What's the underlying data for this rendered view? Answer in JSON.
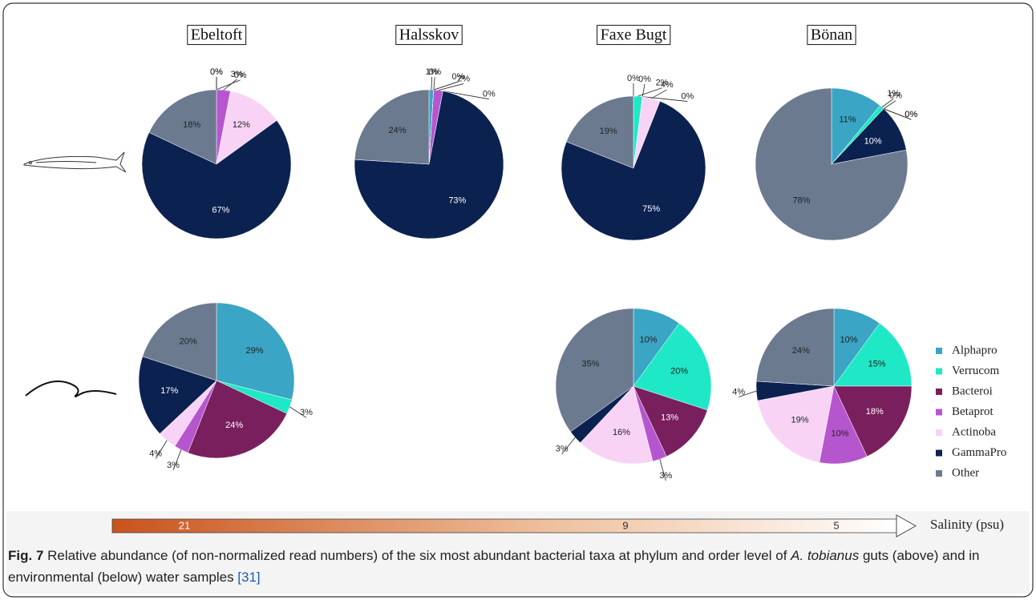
{
  "chart_data": [
    {
      "type": "pie",
      "title": "Ebeltoft",
      "categories": [
        "Alphapro",
        "Verrucom",
        "Bacteroi",
        "Betaprot",
        "Actinoba",
        "GammaPro",
        "Other"
      ],
      "colors": [
        "#3aa5c4",
        "#1fe8c6",
        "#7a1f5d",
        "#b656cf",
        "#f8d3f6",
        "#0b2150",
        "#6c7a90"
      ],
      "values": [
        0,
        0,
        0,
        3,
        12,
        67,
        18
      ],
      "value_labels": [
        "0%",
        "0%",
        "0%",
        "3%",
        "12%",
        "67%",
        "18%"
      ]
    },
    {
      "type": "pie",
      "title": "Halsskov",
      "categories": [
        "Alphapro",
        "Verrucom",
        "Bacteroi",
        "Betaprot",
        "Actinoba",
        "GammaPro",
        "Other"
      ],
      "colors": [
        "#3aa5c4",
        "#1fe8c6",
        "#7a1f5d",
        "#b656cf",
        "#f8d3f6",
        "#0b2150",
        "#6c7a90"
      ],
      "values": [
        1,
        0,
        0,
        2,
        0,
        73,
        24
      ],
      "value_labels": [
        "1%",
        "0%",
        "0%",
        "2%",
        "0%",
        "73%",
        "24%"
      ]
    },
    {
      "type": "pie",
      "title": "Faxe Bugt",
      "categories": [
        "Alphapro",
        "Verrucom",
        "Bacteroi",
        "Betaprot",
        "Actinoba",
        "GammaPro",
        "Other"
      ],
      "colors": [
        "#3aa5c4",
        "#1fe8c6",
        "#7a1f5d",
        "#b656cf",
        "#f8d3f6",
        "#0b2150",
        "#6c7a90"
      ],
      "values": [
        0,
        2,
        0,
        0,
        4,
        75,
        19
      ],
      "value_labels": [
        "0%",
        "2%",
        "0%",
        "0%",
        "4%",
        "75%",
        "19%"
      ]
    },
    {
      "type": "pie",
      "title": "Bönan",
      "categories": [
        "Alphapro",
        "Verrucom",
        "Bacteroi",
        "Betaprot",
        "Actinoba",
        "GammaPro",
        "Other"
      ],
      "colors": [
        "#3aa5c4",
        "#1fe8c6",
        "#7a1f5d",
        "#b656cf",
        "#f8d3f6",
        "#0b2150",
        "#6c7a90"
      ],
      "values": [
        11,
        1,
        0,
        0,
        0,
        10,
        78
      ],
      "value_labels": [
        "11%",
        "1%",
        "0%",
        "0%",
        "0%",
        "10%",
        "78%"
      ]
    },
    {
      "type": "pie",
      "categories": [
        "Alphapro",
        "Verrucom",
        "Bacteroi",
        "Betaprot",
        "Actinoba",
        "GammaPro",
        "Other"
      ],
      "colors": [
        "#3aa5c4",
        "#1fe8c6",
        "#7a1f5d",
        "#b656cf",
        "#f8d3f6",
        "#0b2150",
        "#6c7a90"
      ],
      "values": [
        29,
        3,
        24,
        3,
        4,
        17,
        20
      ],
      "value_labels": [
        "29%",
        "3%",
        "24%",
        "3%",
        "4%",
        "17%",
        "20%"
      ]
    },
    {
      "type": "pie",
      "categories": [
        "Alphapro",
        "Verrucom",
        "Bacteroi",
        "Betaprot",
        "Actinoba",
        "GammaPro",
        "Other"
      ],
      "colors": [
        "#3aa5c4",
        "#1fe8c6",
        "#7a1f5d",
        "#b656cf",
        "#f8d3f6",
        "#0b2150",
        "#6c7a90"
      ],
      "values": [
        10,
        20,
        13,
        3,
        16,
        3,
        35
      ],
      "value_labels": [
        "10%",
        "20%",
        "13%",
        "3%",
        "16%",
        "3%",
        "35%"
      ]
    },
    {
      "type": "pie",
      "categories": [
        "Alphapro",
        "Verrucom",
        "Bacteroi",
        "Betaprot",
        "Actinoba",
        "GammaPro",
        "Other"
      ],
      "colors": [
        "#3aa5c4",
        "#1fe8c6",
        "#7a1f5d",
        "#b656cf",
        "#f8d3f6",
        "#0b2150",
        "#6c7a90"
      ],
      "values": [
        10,
        15,
        18,
        10,
        19,
        4,
        24
      ],
      "value_labels": [
        "10%",
        "15%",
        "18%",
        "10%",
        "19%",
        "4%",
        "24%"
      ]
    }
  ],
  "salinity": {
    "label": "Salinity (psu)",
    "ticks": [
      21,
      9,
      5
    ]
  },
  "caption": {
    "label": "Fig. 7",
    "text": " Relative abundance (of non-normalized read numbers) of the six most abundant bacterial taxa at phylum and order level of ",
    "species": "A. tobianus",
    "text2": " guts (above) and in environmental (below) water samples ",
    "ref": "[31]"
  }
}
